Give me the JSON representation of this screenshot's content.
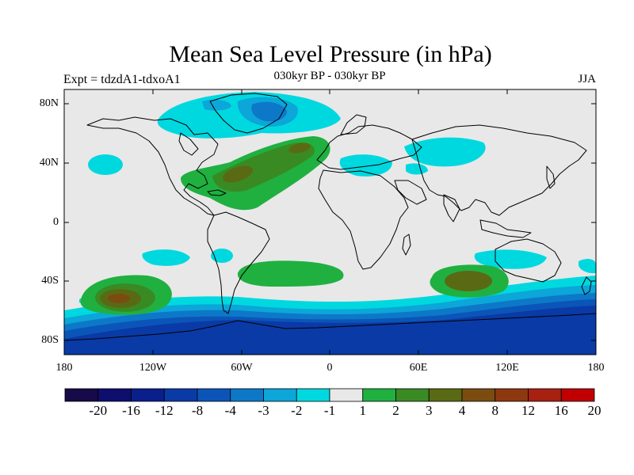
{
  "title": "Mean Sea Level Pressure (in hPa)",
  "left_label": "Expt = tdzdA1-tdxoA1",
  "center_label": "030kyr BP - 030kyr BP",
  "right_label": "JJA",
  "lat_labels": [
    "80N",
    "40N",
    "0",
    "40S",
    "80S"
  ],
  "lon_labels": [
    "180",
    "120W",
    "60W",
    "0",
    "60E",
    "120E",
    "180"
  ],
  "colorbar": {
    "colors": [
      "#160a48",
      "#0e0e6e",
      "#0a1f8c",
      "#0a3aa6",
      "#0b55b8",
      "#0d78c8",
      "#0ca6d8",
      "#00d8e0",
      "#e8e8e8",
      "#20b040",
      "#3a8a24",
      "#5a6a14",
      "#7a4c10",
      "#8e3810",
      "#a82010",
      "#c00000"
    ],
    "labels": [
      "-20",
      "-16",
      "-12",
      "-8",
      "-4",
      "-3",
      "-2",
      "-1",
      "1",
      "2",
      "3",
      "4",
      "8",
      "12",
      "16",
      "20"
    ]
  }
}
